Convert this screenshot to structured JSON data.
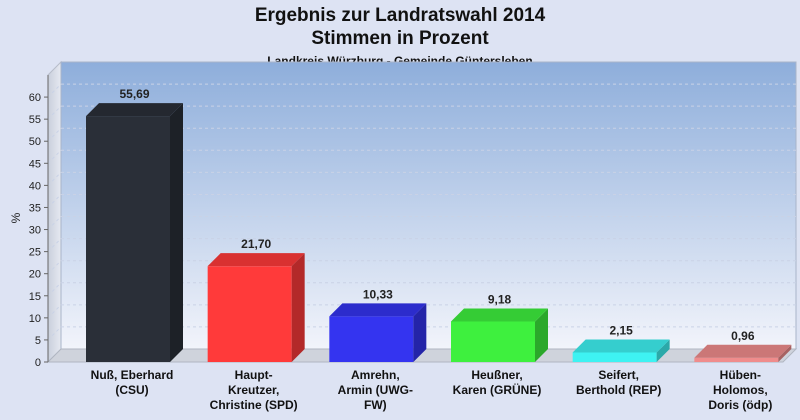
{
  "chart_data": {
    "type": "bar",
    "title": [
      "Ergebnis zur Landratswahl 2014",
      "Stimmen in Prozent"
    ],
    "subtitle": "Landkreis Würzburg - Gemeinde Güntersleben",
    "ylabel": "%",
    "xlabel": "",
    "ylim": [
      0,
      65
    ],
    "yticks": [
      0,
      5,
      10,
      15,
      20,
      25,
      30,
      35,
      40,
      45,
      50,
      55,
      60
    ],
    "grid": true,
    "categories": [
      [
        "Nuß, Eberhard",
        "(CSU)"
      ],
      [
        "Haupt-",
        "Kreutzer,",
        "Christine (SPD)"
      ],
      [
        "Amrehn,",
        "Armin (UWG-",
        "FW)"
      ],
      [
        "Heußner,",
        "Karen (GRÜNE)"
      ],
      [
        "Seifert,",
        "Berthold (REP)"
      ],
      [
        "Hüben-",
        "Holomos,",
        "Doris (ödp)"
      ]
    ],
    "values": [
      55.69,
      21.7,
      10.33,
      9.18,
      2.15,
      0.96
    ],
    "value_labels": [
      "55,69",
      "21,70",
      "10,33",
      "9,18",
      "2,15",
      "0,96"
    ],
    "colors": [
      "#2a2f38",
      "#ff3a3a",
      "#3434f0",
      "#3ef03e",
      "#3ef2f2",
      "#ef8c8c"
    ]
  }
}
